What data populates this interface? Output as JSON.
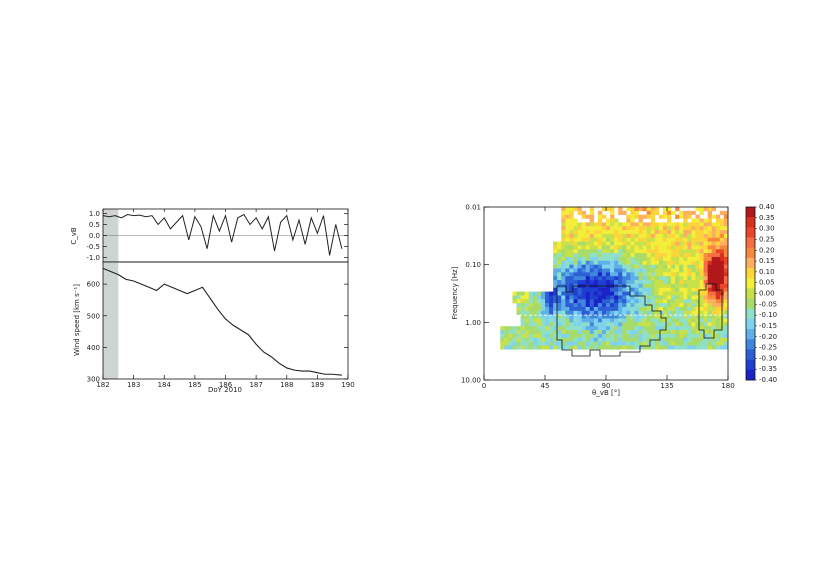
{
  "chart_data": [
    {
      "type": "line",
      "panel": "top-left",
      "ylabel": "C_vB",
      "xlim": [
        182,
        190
      ],
      "ylim": [
        -1.2,
        1.2
      ],
      "yticks": [
        "1.0",
        "0.5",
        "0.0",
        "-0.5",
        "-1.0"
      ],
      "ytick_values": [
        1.0,
        0.5,
        0.0,
        -0.5,
        -1.0
      ],
      "reference_line_y": 0.0,
      "shaded_x_range": [
        182,
        182.5
      ],
      "series": [
        {
          "x": [
            182.0,
            182.2,
            182.4,
            182.6,
            182.8,
            183.0,
            183.2,
            183.4,
            183.6,
            183.8,
            184.0,
            184.2,
            184.4,
            184.6,
            184.8,
            185.0,
            185.2,
            185.4,
            185.6,
            185.8,
            186.0,
            186.2,
            186.4,
            186.6,
            186.8,
            187.0,
            187.2,
            187.4,
            187.6,
            187.8,
            188.0,
            188.2,
            188.4,
            188.6,
            188.8,
            189.0,
            189.2,
            189.4,
            189.6,
            189.8
          ],
          "y": [
            0.9,
            0.85,
            0.9,
            0.8,
            0.95,
            0.9,
            0.92,
            0.85,
            0.9,
            0.5,
            0.8,
            0.3,
            0.6,
            0.9,
            -0.2,
            0.85,
            0.4,
            -0.6,
            0.9,
            0.2,
            0.9,
            -0.3,
            0.8,
            0.95,
            0.5,
            0.8,
            0.3,
            0.85,
            -0.7,
            0.6,
            0.9,
            -0.2,
            0.7,
            -0.4,
            0.8,
            0.1,
            0.9,
            -0.9,
            0.5,
            -0.6
          ]
        }
      ]
    },
    {
      "type": "line",
      "panel": "bottom-left",
      "xlabel": "DoY 2010",
      "ylabel": "Wind speed [km s⁻¹]",
      "xlim": [
        182,
        190
      ],
      "ylim": [
        300,
        670
      ],
      "xticks": [
        "182",
        "183",
        "184",
        "185",
        "186",
        "187",
        "188",
        "189",
        "190"
      ],
      "xtick_values": [
        182,
        183,
        184,
        185,
        186,
        187,
        188,
        189,
        190
      ],
      "yticks": [
        "600",
        "500",
        "400",
        "300"
      ],
      "ytick_values": [
        600,
        500,
        400,
        300
      ],
      "shaded_x_range": [
        182,
        182.5
      ],
      "series": [
        {
          "x": [
            182.0,
            182.25,
            182.5,
            182.75,
            183.0,
            183.25,
            183.5,
            183.75,
            184.0,
            184.25,
            184.5,
            184.75,
            185.0,
            185.25,
            185.5,
            185.75,
            186.0,
            186.25,
            186.5,
            186.75,
            187.0,
            187.25,
            187.5,
            187.75,
            188.0,
            188.25,
            188.5,
            188.75,
            189.0,
            189.25,
            189.5,
            189.8
          ],
          "y": [
            650,
            640,
            630,
            615,
            610,
            600,
            590,
            580,
            600,
            590,
            580,
            570,
            580,
            590,
            555,
            520,
            490,
            470,
            455,
            440,
            410,
            385,
            370,
            350,
            335,
            328,
            325,
            325,
            320,
            315,
            315,
            312
          ]
        }
      ]
    },
    {
      "type": "heatmap",
      "panel": "right",
      "xlabel": "θ_vB [°]",
      "ylabel": "Frequency [Hz]",
      "xlim": [
        0,
        180
      ],
      "ylim_log": [
        0.01,
        10.0
      ],
      "xticks": [
        "0",
        "45",
        "90",
        "135",
        "180"
      ],
      "xtick_values": [
        0,
        45,
        90,
        135,
        180
      ],
      "yticks": [
        "0.01",
        "0.10",
        "1.00",
        "10.00"
      ],
      "ytick_values": [
        0.01,
        0.1,
        1.0,
        10.0
      ],
      "dashed_line_freq": 0.75,
      "colorbar": {
        "min": -0.4,
        "max": 0.4,
        "labels": [
          "0.40",
          "0.35",
          "0.30",
          "0.25",
          "0.20",
          "0.15",
          "0.10",
          "0.05",
          "0.00",
          "-0.05",
          "-0.10",
          "-0.15",
          "-0.20",
          "-0.25",
          "-0.30",
          "-0.35",
          "-0.40"
        ],
        "colors": [
          "#b2181b",
          "#d7301f",
          "#e8452a",
          "#f46d43",
          "#f58a3c",
          "#fdae61",
          "#fdd43a",
          "#f2ee3a",
          "#c8e04a",
          "#a8dc6a",
          "#8ee0c8",
          "#7fd3ee",
          "#5fb0e8",
          "#3f86dc",
          "#2d5ed6",
          "#1f3fd0",
          "#1a23c8"
        ]
      }
    }
  ]
}
